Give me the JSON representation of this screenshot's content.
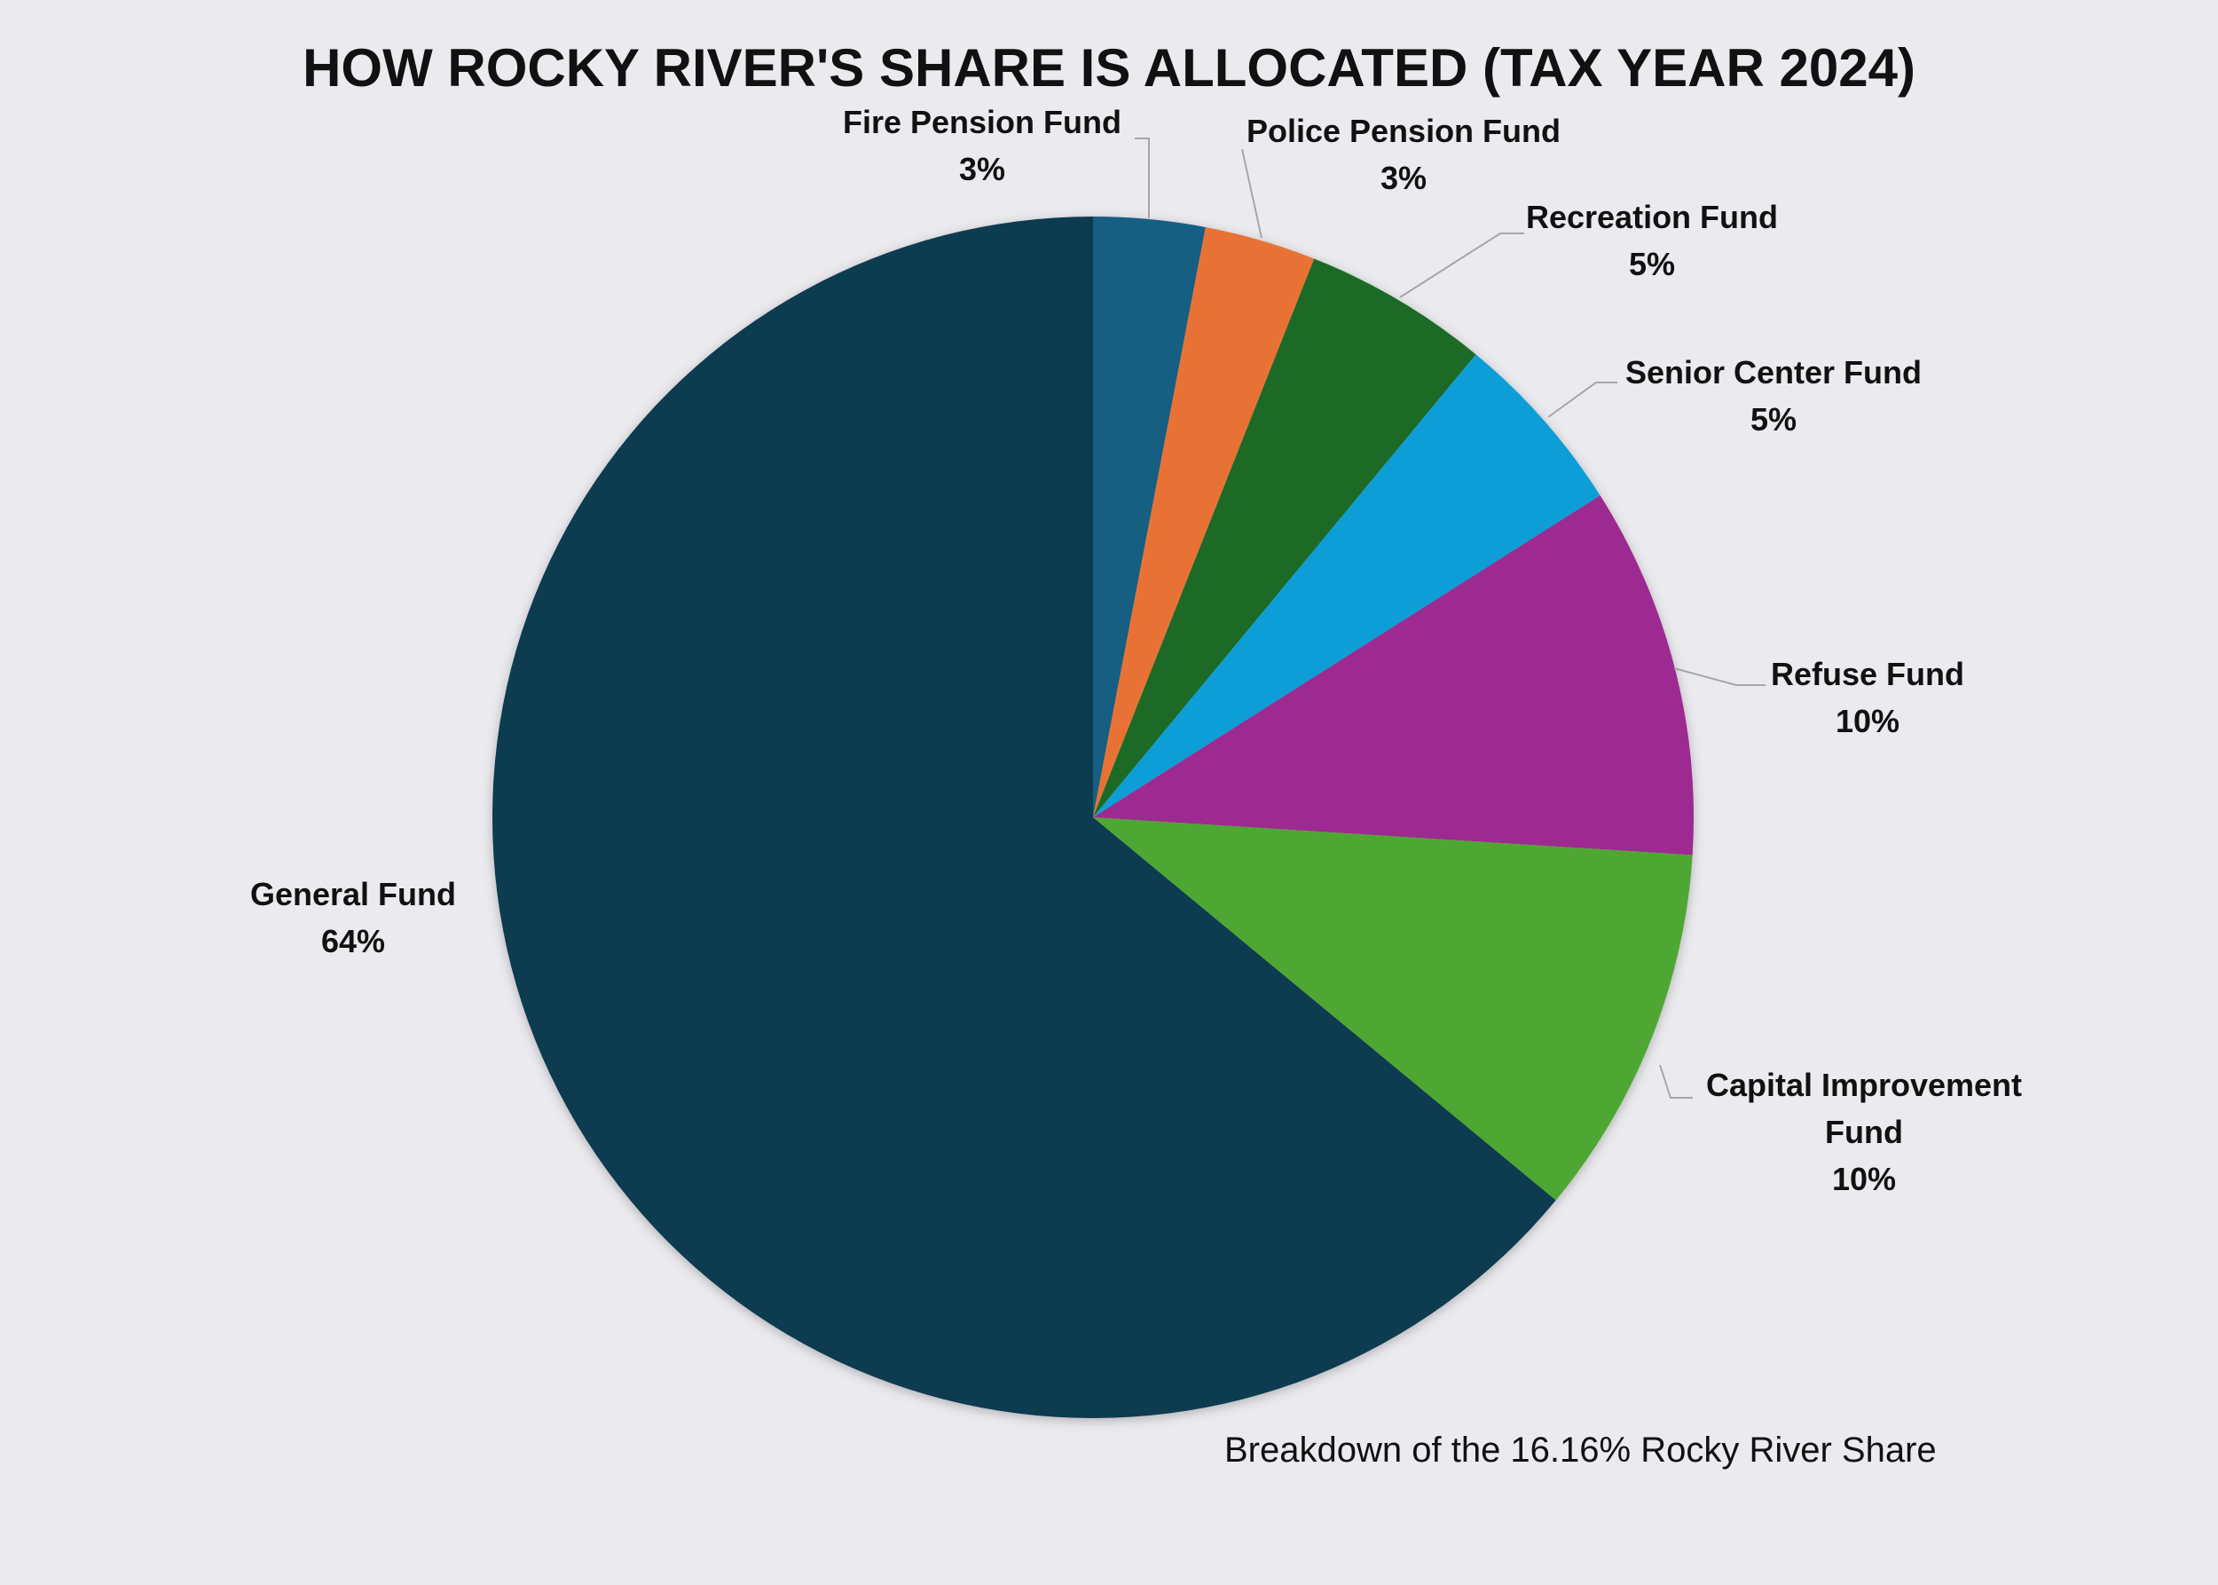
{
  "chart_data": {
    "type": "pie",
    "title": "HOW ROCKY RIVER'S SHARE IS ALLOCATED (TAX YEAR 2024)",
    "subtitle": "Breakdown of the 16.16% Rocky River Share",
    "start_angle_deg": 0,
    "direction": "clockwise",
    "slices": [
      {
        "label": "Fire Pension Fund",
        "value_label": "3%",
        "value": 3,
        "color": "#175e82"
      },
      {
        "label": "Police Pension Fund",
        "value_label": "3%",
        "value": 3,
        "color": "#e87234"
      },
      {
        "label": "Recreation Fund",
        "value_label": "5%",
        "value": 5,
        "color": "#1b6b25"
      },
      {
        "label": "Senior Center Fund",
        "value_label": "5%",
        "value": 5,
        "color": "#119ed7"
      },
      {
        "label": "Refuse Fund",
        "value_label": "10%",
        "value": 10,
        "color": "#9d2a90"
      },
      {
        "label": "Capital Improvement Fund",
        "value_label": "10%",
        "value": 10,
        "color": "#4ea731"
      },
      {
        "label": "General Fund",
        "value_label": "64%",
        "value": 64,
        "color": "#0f3a50"
      }
    ]
  }
}
